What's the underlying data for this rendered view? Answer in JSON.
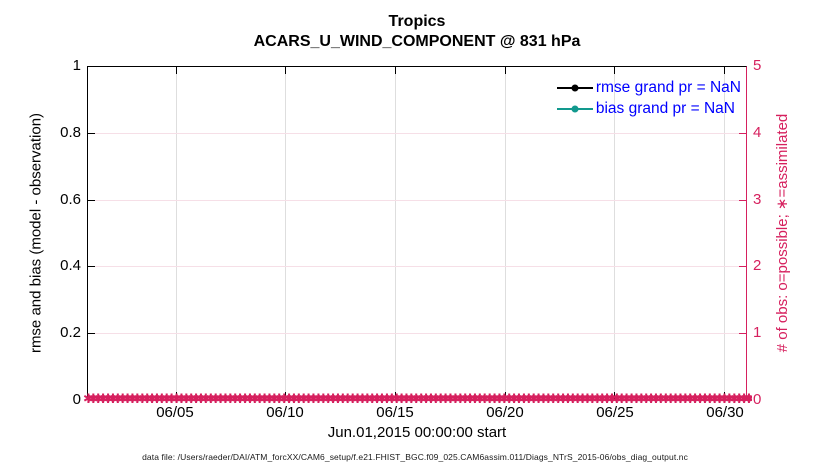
{
  "chart_data": {
    "type": "line",
    "title": "Tropics",
    "subtitle": "ACARS_U_WIND_COMPONENT @ 831 hPa",
    "xlabel": "Jun.01,2015 00:00:00 start",
    "ylabel_left": "rmse and bias (model - observation)",
    "ylabel_right": "# of obs: o=possible; ∗=assimilated",
    "ylim_left": [
      0,
      1
    ],
    "ylim_right": [
      0,
      5
    ],
    "y_ticks_left": [
      "0",
      "0.2",
      "0.4",
      "0.6",
      "0.8",
      "1"
    ],
    "y_ticks_right": [
      "0",
      "1",
      "2",
      "3",
      "4",
      "5"
    ],
    "x_ticks": [
      "06/05",
      "06/10",
      "06/15",
      "06/20",
      "06/25",
      "06/30"
    ],
    "x_tick_positions": [
      0.1333,
      0.3,
      0.4667,
      0.6333,
      0.8,
      0.9667
    ],
    "x_range": "Jun 01 2015 00:00 to Jul 01 2015 00:00",
    "grid": "on",
    "legend_position": "upper right inside plot",
    "series": [
      {
        "name": "rmse grand pr = NaN",
        "color": "#000000",
        "marker": "filled-circle",
        "values": null
      },
      {
        "name": "bias grand pr = NaN",
        "color": "#12998E",
        "marker": "filled-circle",
        "values": null
      },
      {
        "name": "assimilated obs count",
        "color": "#D6205E",
        "marker": "✱",
        "constant_value": 0
      }
    ],
    "footer": "data file: /Users/raeder/DAI/ATM_forcXX/CAM6_setup/f.e21.FHIST_BGC.f09_025.CAM6assim.011/Diags_NTrS_2015-06/obs_diag_output.nc"
  },
  "colors": {
    "axis_left": "#000000",
    "axis_right": "#D6205E",
    "legend_text": "#0000FF",
    "grid_vertical": "#DEDEDE",
    "grid_horizontal": "#F6DFE7",
    "background": "#FFFFFF"
  }
}
